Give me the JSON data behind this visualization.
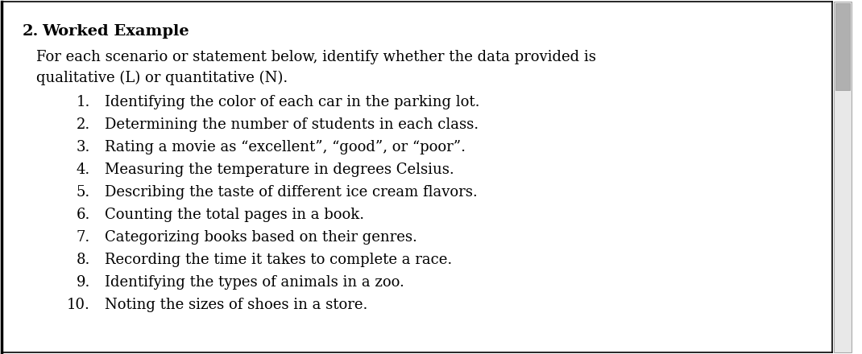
{
  "bg_color": "#ffffff",
  "border_color": "#000000",
  "number_label": "2.",
  "title": "Worked Example",
  "intro_line1": "For each scenario or statement below, identify whether the data provided is",
  "intro_line2": "qualitative (L) or quantitative (N).",
  "items": [
    "Identifying the color of each car in the parking lot.",
    "Determining the number of students in each class.",
    "Rating a movie as “excellent”, “good”, or “poor”.",
    "Measuring the temperature in degrees Celsius.",
    "Describing the taste of different ice cream flavors.",
    "Counting the total pages in a book.",
    "Categorizing books based on their genres.",
    "Recording the time it takes to complete a race.",
    "Identifying the types of animals in a zoo.",
    "Noting the sizes of shoes in a store."
  ],
  "title_fontsize": 14,
  "body_fontsize": 13,
  "item_fontsize": 13,
  "scrollbar_bg": "#e8e8e8",
  "scrollbar_thumb": "#b0b0b0"
}
